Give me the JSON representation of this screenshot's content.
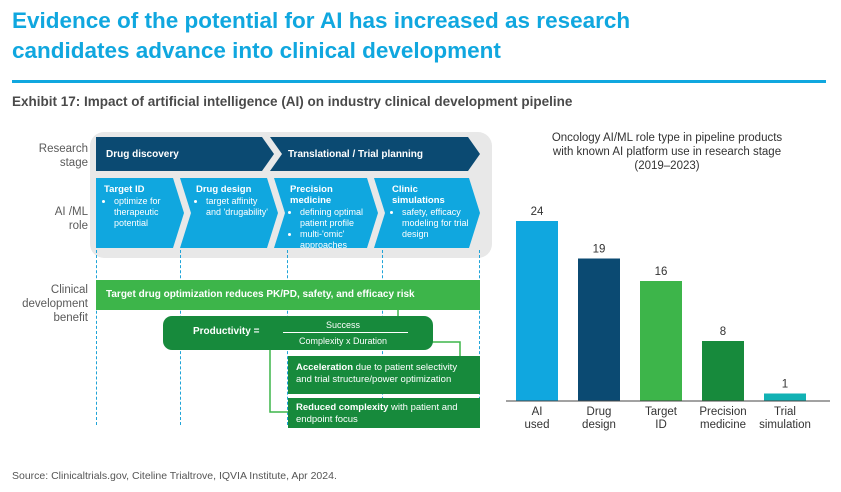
{
  "header": {
    "title_line1": "Evidence of the potential for AI has increased as research",
    "title_line2": "candidates advance into clinical development",
    "exhibit": "Exhibit 17: Impact of artificial intelligence (AI) on industry clinical development pipeline"
  },
  "diagram": {
    "row_labels": {
      "research_stage": [
        "Research",
        "stage"
      ],
      "ai_ml_role": [
        "AI /ML",
        "role"
      ],
      "clinical_benefit": [
        "Clinical",
        "development",
        "benefit"
      ]
    },
    "stages": [
      "Drug discovery",
      "Translational / Trial planning"
    ],
    "roles": [
      {
        "title": "Target ID",
        "bullets": [
          "optimize for therapeutic potential"
        ]
      },
      {
        "title": "Drug design",
        "bullets": [
          "target affinity and 'drugability'"
        ]
      },
      {
        "title": "Precision medicine",
        "bullets": [
          "defining optimal patient profile",
          "multi-'omic' approaches"
        ]
      },
      {
        "title": "Clinic simulations",
        "bullets": [
          "safety, efficacy modeling for trial design"
        ]
      }
    ],
    "benefit_main": "Target drug optimization reduces PK/PD, safety, and efficacy risk",
    "productivity": {
      "label": "Productivity =",
      "numerator": "Success",
      "denominator": "Complexity x Duration"
    },
    "acceleration": {
      "bold": "Acceleration",
      "rest": " due to patient selectivity and trial structure/power optimization"
    },
    "reduced": {
      "bold": "Reduced complexity",
      "rest": " with patient and endpoint focus"
    }
  },
  "colors": {
    "dark_navy": "#0b4a72",
    "light_blue": "#10a7df",
    "green": "#3db54a",
    "dark_green": "#178a3c",
    "teal": "#12b2b4"
  },
  "chart_data": {
    "type": "bar",
    "title_lines": [
      "Oncology AI/ML role type in pipeline products",
      "with known AI platform use in research stage",
      "(2019–2023)"
    ],
    "categories": [
      [
        "AI",
        "used"
      ],
      [
        "Drug",
        "design"
      ],
      [
        "Target",
        "ID"
      ],
      [
        "Precision",
        "medicine"
      ],
      [
        "Trial",
        "simulation"
      ]
    ],
    "values": [
      24,
      19,
      16,
      8,
      1
    ],
    "colors": [
      "#10a7df",
      "#0b4a72",
      "#3db54a",
      "#178a3c",
      "#12b2b4"
    ],
    "ylim": [
      0,
      24
    ]
  },
  "footer": {
    "source": "Source: Clinicaltrials.gov, Citeline Trialtrove, IQVIA Institute, Apr 2024."
  }
}
